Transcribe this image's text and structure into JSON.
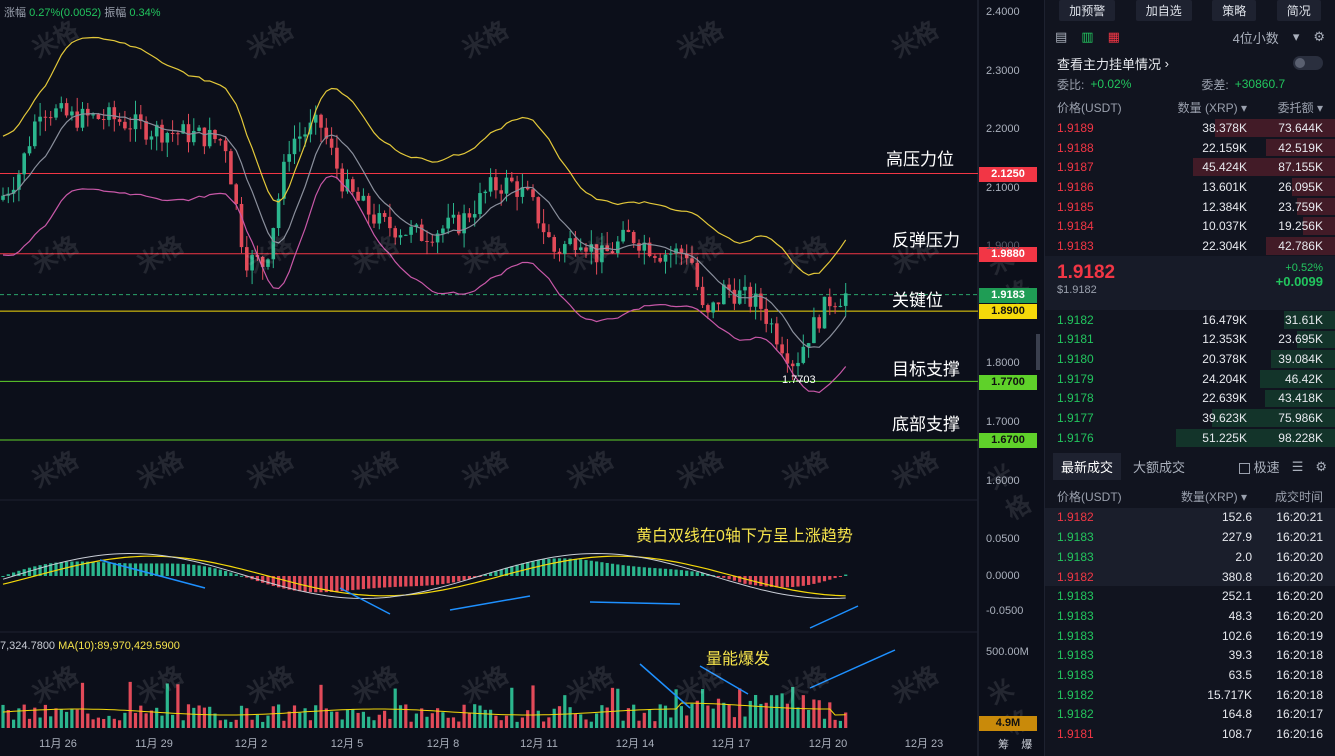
{
  "top_info": {
    "change_label": "涨幅",
    "change_value": "0.27%(0.0052)",
    "amp_label": "振幅",
    "amp_value": "0.34%"
  },
  "watermark": "米格",
  "levels": [
    {
      "label": "高压力位",
      "price": "2.1250",
      "color": "#f23645",
      "text_color": "#ffffff"
    },
    {
      "label": "反弹压力",
      "price": "1.9880",
      "color": "#f23645",
      "text_color": "#ffffff"
    },
    {
      "label": "关键位",
      "price": "1.9183",
      "color": "#1f9d55",
      "text_color": "#ffffff"
    },
    {
      "label": "",
      "price": "1.8900",
      "color": "#f5d90a",
      "text_color": "#111111"
    },
    {
      "label": "目标支撑",
      "price": "1.7700",
      "color": "#5fd12a",
      "text_color": "#111111"
    },
    {
      "label": "底部支撑",
      "price": "1.6700",
      "color": "#5fd12a",
      "text_color": "#111111"
    }
  ],
  "price_axis": [
    "2.4000",
    "2.3000",
    "2.2000",
    "2.1000",
    "1.9000",
    "1.8000",
    "1.7000",
    "1.6000"
  ],
  "macd_axis": [
    "0.0500",
    "0.0000",
    "-0.0500"
  ],
  "vol_axis": [
    "500.00M"
  ],
  "vol_tag": "4.9M",
  "x_labels": [
    "11月 26",
    "11月 29",
    "12月 2",
    "12月 5",
    "12月 8",
    "12月 11",
    "12月 14",
    "12月 17",
    "12月 20",
    "12月 23"
  ],
  "min_label": "1.7703",
  "macd_annotation": "黄白双线在0轴下方呈上涨趋势",
  "vol_annotation": "量能爆发",
  "vol_info": {
    "prefix": "7,324.7800",
    "ma_label": "MA(10):89,970,429.5900"
  },
  "bottom_right": [
    "筹",
    "爆"
  ],
  "sidebar": {
    "buttons": [
      "加预警",
      "加自选",
      "策略",
      "简况"
    ],
    "decimals": "4位小数",
    "main_orders": "查看主力挂单情况",
    "ratio_label": "委比:",
    "ratio_value": "+0.02%",
    "diff_label": "委差:",
    "diff_value": "+30860.7",
    "headers": {
      "price": "价格(USDT)",
      "qty": "数量 (XRP)",
      "amount": "委托额"
    },
    "asks": [
      {
        "price": "1.9189",
        "qty": "38.378K",
        "amount": "73.644K",
        "fill": 0.75
      },
      {
        "price": "1.9188",
        "qty": "22.159K",
        "amount": "42.519K",
        "fill": 0.43
      },
      {
        "price": "1.9187",
        "qty": "45.424K",
        "amount": "87.155K",
        "fill": 0.89
      },
      {
        "price": "1.9186",
        "qty": "13.601K",
        "amount": "26.095K",
        "fill": 0.27
      },
      {
        "price": "1.9185",
        "qty": "12.384K",
        "amount": "23.759K",
        "fill": 0.24
      },
      {
        "price": "1.9184",
        "qty": "10.037K",
        "amount": "19.256K",
        "fill": 0.2
      },
      {
        "price": "1.9183",
        "qty": "22.304K",
        "amount": "42.786K",
        "fill": 0.43
      }
    ],
    "mid": {
      "price": "1.9182",
      "usd": "$1.9182",
      "pct": "+0.52%",
      "chg": "+0.0099"
    },
    "bids": [
      {
        "price": "1.9182",
        "qty": "16.479K",
        "amount": "31.61K",
        "fill": 0.32
      },
      {
        "price": "1.9181",
        "qty": "12.353K",
        "amount": "23.695K",
        "fill": 0.24
      },
      {
        "price": "1.9180",
        "qty": "20.378K",
        "amount": "39.084K",
        "fill": 0.4
      },
      {
        "price": "1.9179",
        "qty": "24.204K",
        "amount": "46.42K",
        "fill": 0.47
      },
      {
        "price": "1.9178",
        "qty": "22.639K",
        "amount": "43.418K",
        "fill": 0.44
      },
      {
        "price": "1.9177",
        "qty": "39.623K",
        "amount": "75.986K",
        "fill": 0.77
      },
      {
        "price": "1.9176",
        "qty": "51.225K",
        "amount": "98.228K",
        "fill": 1.0
      }
    ],
    "trade_tabs": {
      "latest": "最新成交",
      "large": "大额成交",
      "speed": "极速"
    },
    "trade_headers": {
      "price": "价格(USDT)",
      "qty": "数量(XRP)",
      "time": "成交时间"
    },
    "trades": [
      {
        "price": "1.9182",
        "qty": "152.6",
        "time": "16:20:21",
        "side": "sell",
        "hl": true
      },
      {
        "price": "1.9183",
        "qty": "227.9",
        "time": "16:20:21",
        "side": "buy",
        "hl": true
      },
      {
        "price": "1.9183",
        "qty": "2.0",
        "time": "16:20:20",
        "side": "buy",
        "hl": true
      },
      {
        "price": "1.9182",
        "qty": "380.8",
        "time": "16:20:20",
        "side": "sell",
        "hl": true
      },
      {
        "price": "1.9183",
        "qty": "252.1",
        "time": "16:20:20",
        "side": "buy",
        "hl": false
      },
      {
        "price": "1.9183",
        "qty": "48.3",
        "time": "16:20:20",
        "side": "buy",
        "hl": false
      },
      {
        "price": "1.9183",
        "qty": "102.6",
        "time": "16:20:19",
        "side": "buy",
        "hl": false
      },
      {
        "price": "1.9183",
        "qty": "39.3",
        "time": "16:20:18",
        "side": "buy",
        "hl": false
      },
      {
        "price": "1.9183",
        "qty": "63.5",
        "time": "16:20:18",
        "side": "buy",
        "hl": false
      },
      {
        "price": "1.9182",
        "qty": "15.717K",
        "time": "16:20:18",
        "side": "buy",
        "hl": false
      },
      {
        "price": "1.9182",
        "qty": "164.8",
        "time": "16:20:17",
        "side": "buy",
        "hl": false
      },
      {
        "price": "1.9181",
        "qty": "108.7",
        "time": "16:20:16",
        "side": "sell",
        "hl": false
      }
    ]
  }
}
